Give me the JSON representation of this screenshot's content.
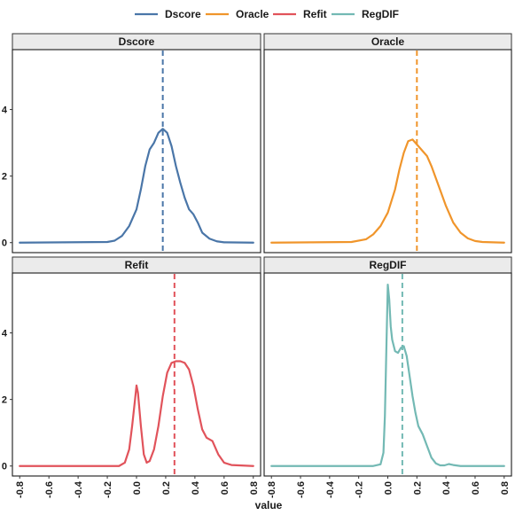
{
  "chart_data": {
    "type": "line",
    "xlabel": "value",
    "ylabel": "",
    "xlim": [
      -0.85,
      0.85
    ],
    "ylim": [
      -0.3,
      5.8
    ],
    "x_ticks": [
      -0.8,
      -0.6,
      -0.4,
      -0.2,
      0.0,
      0.2,
      0.4,
      0.6,
      0.8
    ],
    "x_tick_labels": [
      "-0.8",
      "-0.6",
      "-0.4",
      "-0.2",
      "0.0",
      "0.2",
      "0.4",
      "0.6",
      "0.8"
    ],
    "y_ticks": [
      0,
      2,
      4
    ],
    "y_tick_labels": [
      "0",
      "2",
      "4"
    ],
    "grid": false,
    "legend_position": "top",
    "legend": [
      {
        "name": "Dscore",
        "color": "#4a76a8"
      },
      {
        "name": "Oracle",
        "color": "#f0952b"
      },
      {
        "name": "Refit",
        "color": "#e1535b"
      },
      {
        "name": "RegDIF",
        "color": "#73b9b4"
      }
    ],
    "panels": [
      {
        "title": "Dscore",
        "color": "#4a76a8",
        "vline": 0.18,
        "x": [
          -0.8,
          -0.2,
          -0.15,
          -0.1,
          -0.05,
          0.0,
          0.03,
          0.06,
          0.09,
          0.12,
          0.15,
          0.18,
          0.21,
          0.24,
          0.27,
          0.3,
          0.33,
          0.36,
          0.39,
          0.42,
          0.45,
          0.5,
          0.55,
          0.6,
          0.8
        ],
        "y": [
          0.0,
          0.02,
          0.06,
          0.2,
          0.5,
          1.0,
          1.6,
          2.3,
          2.8,
          3.0,
          3.3,
          3.42,
          3.3,
          2.9,
          2.3,
          1.8,
          1.35,
          1.0,
          0.85,
          0.6,
          0.3,
          0.12,
          0.04,
          0.01,
          0.0
        ]
      },
      {
        "title": "Oracle",
        "color": "#f0952b",
        "vline": 0.2,
        "x": [
          -0.8,
          -0.25,
          -0.15,
          -0.1,
          -0.05,
          0.0,
          0.05,
          0.08,
          0.11,
          0.14,
          0.17,
          0.2,
          0.23,
          0.27,
          0.3,
          0.35,
          0.4,
          0.45,
          0.5,
          0.55,
          0.6,
          0.65,
          0.8
        ],
        "y": [
          0.0,
          0.02,
          0.1,
          0.25,
          0.5,
          0.9,
          1.6,
          2.2,
          2.7,
          3.05,
          3.1,
          2.95,
          2.8,
          2.6,
          2.3,
          1.7,
          1.1,
          0.6,
          0.3,
          0.13,
          0.05,
          0.02,
          0.0
        ]
      },
      {
        "title": "Refit",
        "color": "#e1535b",
        "vline": 0.26,
        "x": [
          -0.8,
          -0.12,
          -0.08,
          -0.05,
          -0.03,
          -0.01,
          0.0,
          0.01,
          0.03,
          0.05,
          0.07,
          0.09,
          0.12,
          0.15,
          0.18,
          0.21,
          0.24,
          0.27,
          0.3,
          0.33,
          0.36,
          0.39,
          0.42,
          0.45,
          0.48,
          0.52,
          0.56,
          0.6,
          0.65,
          0.8
        ],
        "y": [
          0.0,
          0.0,
          0.1,
          0.5,
          1.2,
          2.0,
          2.42,
          2.2,
          1.2,
          0.35,
          0.1,
          0.15,
          0.5,
          1.2,
          2.1,
          2.8,
          3.1,
          3.15,
          3.15,
          3.1,
          2.9,
          2.4,
          1.7,
          1.1,
          0.85,
          0.75,
          0.35,
          0.1,
          0.03,
          0.0
        ]
      },
      {
        "title": "RegDIF",
        "color": "#73b9b4",
        "vline": 0.1,
        "x": [
          -0.8,
          -0.1,
          -0.05,
          -0.03,
          -0.02,
          -0.01,
          0.0,
          0.01,
          0.02,
          0.03,
          0.05,
          0.07,
          0.09,
          0.11,
          0.13,
          0.15,
          0.17,
          0.19,
          0.21,
          0.24,
          0.27,
          0.3,
          0.33,
          0.36,
          0.39,
          0.42,
          0.45,
          0.5,
          0.8
        ],
        "y": [
          0.0,
          0.0,
          0.05,
          0.4,
          1.5,
          3.5,
          5.45,
          5.0,
          4.2,
          3.8,
          3.45,
          3.4,
          3.55,
          3.6,
          3.3,
          2.7,
          2.1,
          1.6,
          1.2,
          0.95,
          0.6,
          0.25,
          0.08,
          0.02,
          0.02,
          0.06,
          0.03,
          0.0,
          0.0
        ]
      }
    ]
  }
}
